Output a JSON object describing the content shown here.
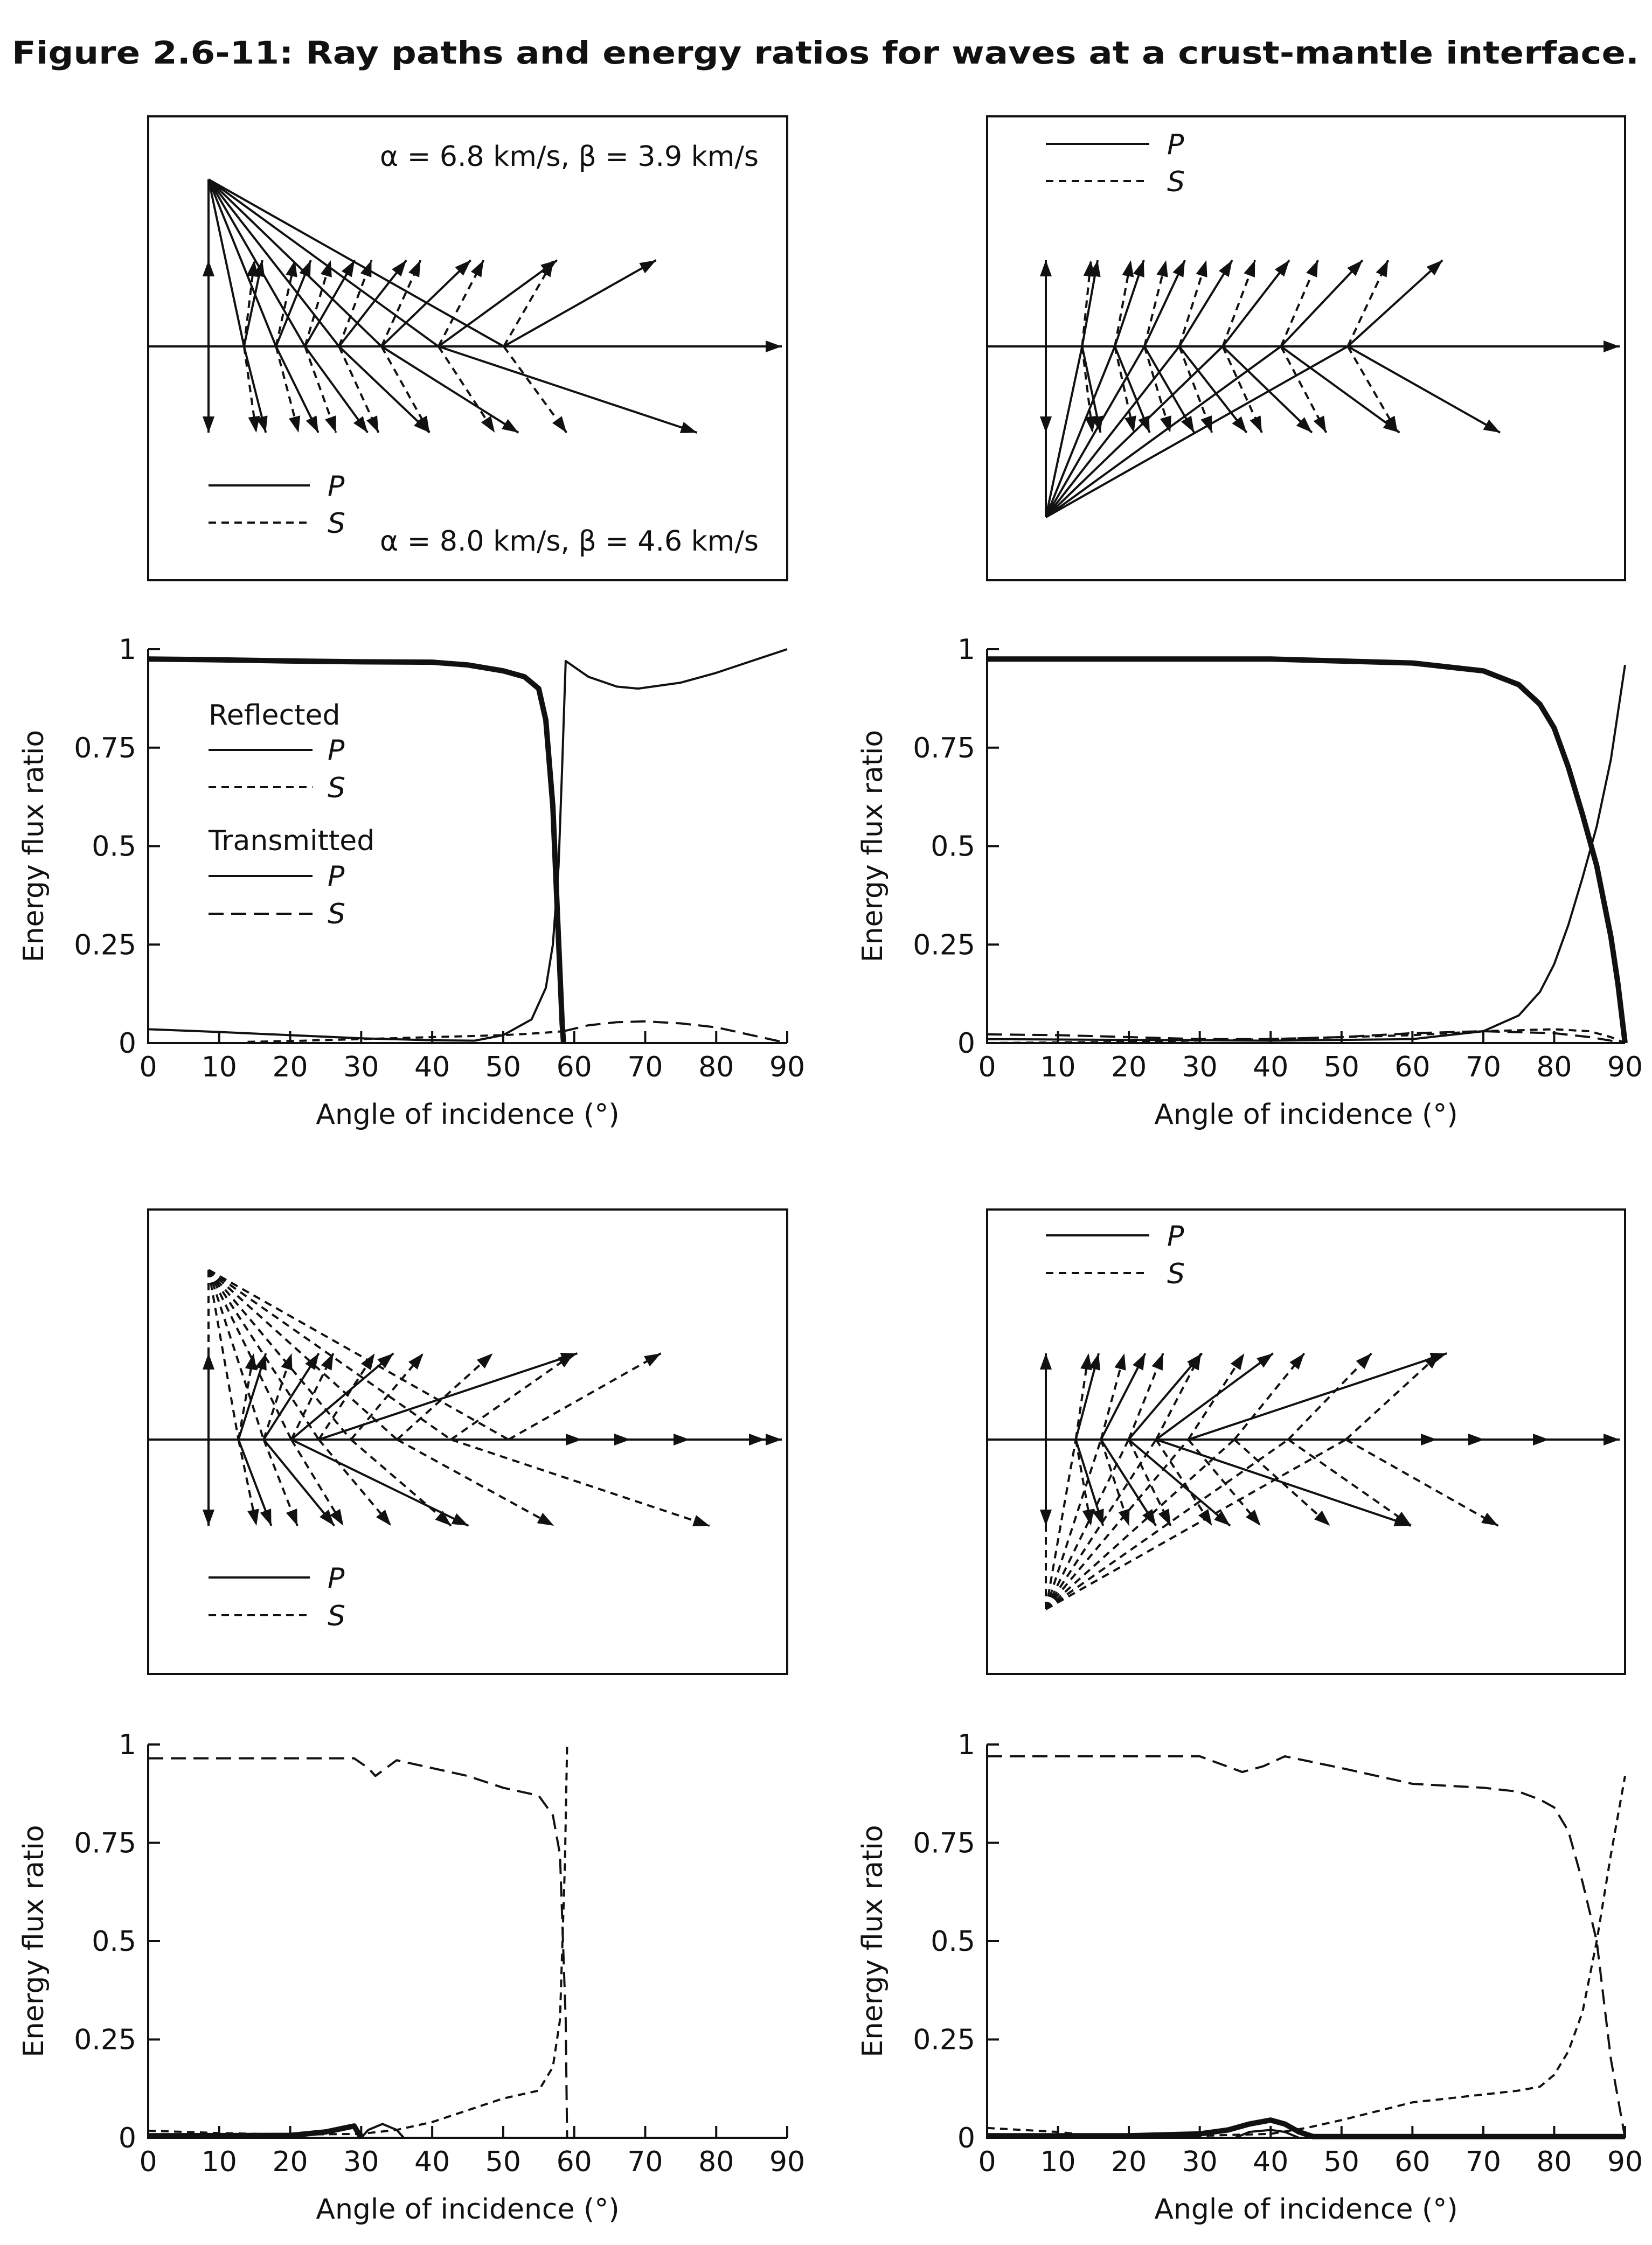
{
  "title": "Figure 2.6-11: Ray paths and energy ratios for waves at a crust-mantle interface.",
  "diagrams": [
    {
      "upper_velocities": "α = 6.8 km/s, β = 3.9 km/s",
      "lower_velocities": "α = 8.0 km/s, β = 4.6 km/s",
      "legend": [
        {
          "label": "P"
        },
        {
          "label": "S"
        }
      ]
    },
    {
      "legend": [
        {
          "label": "P"
        },
        {
          "label": "S"
        }
      ]
    },
    {
      "legend": [
        {
          "label": "P"
        },
        {
          "label": "S"
        }
      ]
    },
    {
      "legend": [
        {
          "label": "P"
        },
        {
          "label": "S"
        }
      ]
    }
  ],
  "chart_legend": {
    "reflected": "Reflected",
    "reflected_p": "P",
    "reflected_s": "S",
    "transmitted": "Transmitted",
    "transmitted_p": "P",
    "transmitted_s": "S"
  },
  "chart_data": [
    {
      "type": "line",
      "title": "",
      "xlabel": "Angle of incidence (°)",
      "ylabel": "Energy flux ratio",
      "xlim": [
        0,
        90
      ],
      "ylim": [
        0,
        1
      ],
      "grid": false,
      "legend": "upper-left",
      "x_ticks": [
        "0",
        "10",
        "20",
        "30",
        "40",
        "50",
        "60",
        "70",
        "80",
        "90"
      ],
      "y_ticks": [
        "0",
        "0.25",
        "0.5",
        "0.75",
        "1"
      ],
      "series": [
        {
          "name": "Reflected P",
          "points": [
            [
              0,
              0.035
            ],
            [
              10,
              0.028
            ],
            [
              20,
              0.02
            ],
            [
              30,
              0.012
            ],
            [
              40,
              0.007
            ],
            [
              46,
              0.006
            ],
            [
              50,
              0.02
            ],
            [
              54,
              0.06
            ],
            [
              56,
              0.14
            ],
            [
              57,
              0.25
            ],
            [
              57.8,
              0.45
            ],
            [
              58.3,
              0.7
            ],
            [
              58.8,
              0.97
            ],
            [
              62,
              0.93
            ],
            [
              66,
              0.905
            ],
            [
              69,
              0.9
            ],
            [
              75,
              0.915
            ],
            [
              80,
              0.94
            ],
            [
              85,
              0.97
            ],
            [
              90,
              1.0
            ]
          ]
        },
        {
          "name": "Reflected S",
          "points": [
            [
              14,
              0.003
            ],
            [
              20,
              0.005
            ],
            [
              30,
              0.01
            ],
            [
              40,
              0.015
            ],
            [
              50,
              0.02
            ],
            [
              55,
              0.025
            ],
            [
              58.5,
              0.03
            ]
          ]
        },
        {
          "name": "Transmitted P",
          "points": [
            [
              0,
              0.975
            ],
            [
              10,
              0.973
            ],
            [
              20,
              0.97
            ],
            [
              30,
              0.968
            ],
            [
              40,
              0.967
            ],
            [
              45,
              0.96
            ],
            [
              50,
              0.945
            ],
            [
              53,
              0.93
            ],
            [
              55,
              0.9
            ],
            [
              56,
              0.82
            ],
            [
              57,
              0.6
            ],
            [
              57.7,
              0.3
            ],
            [
              58.3,
              0.05
            ],
            [
              58.5,
              0
            ]
          ]
        },
        {
          "name": "Transmitted S",
          "points": [
            [
              58.5,
              0.03
            ],
            [
              62,
              0.045
            ],
            [
              66,
              0.053
            ],
            [
              70,
              0.055
            ],
            [
              75,
              0.05
            ],
            [
              80,
              0.04
            ],
            [
              85,
              0.02
            ],
            [
              90,
              0
            ]
          ]
        }
      ]
    },
    {
      "type": "line",
      "title": "",
      "xlabel": "Angle of incidence (°)",
      "ylabel": "Energy flux ratio",
      "xlim": [
        0,
        90
      ],
      "ylim": [
        0,
        1
      ],
      "grid": false,
      "x_ticks": [
        "0",
        "10",
        "20",
        "30",
        "40",
        "50",
        "60",
        "70",
        "80",
        "90"
      ],
      "y_ticks": [
        "0",
        "0.25",
        "0.5",
        "0.75",
        "1"
      ],
      "series": [
        {
          "name": "Reflected P",
          "points": [
            [
              0,
              0.01
            ],
            [
              20,
              0.008
            ],
            [
              40,
              0.006
            ],
            [
              60,
              0.01
            ],
            [
              70,
              0.03
            ],
            [
              75,
              0.07
            ],
            [
              78,
              0.13
            ],
            [
              80,
              0.2
            ],
            [
              82,
              0.3
            ],
            [
              84,
              0.42
            ],
            [
              86,
              0.55
            ],
            [
              88,
              0.72
            ],
            [
              90,
              0.96
            ]
          ]
        },
        {
          "name": "Reflected S",
          "points": [
            [
              0,
              0
            ],
            [
              20,
              0.003
            ],
            [
              40,
              0.01
            ],
            [
              60,
              0.02
            ],
            [
              70,
              0.03
            ],
            [
              80,
              0.035
            ],
            [
              85,
              0.03
            ],
            [
              88,
              0.015
            ],
            [
              90,
              0
            ]
          ]
        },
        {
          "name": "Transmitted P",
          "points": [
            [
              0,
              0.975
            ],
            [
              20,
              0.975
            ],
            [
              40,
              0.975
            ],
            [
              60,
              0.965
            ],
            [
              70,
              0.945
            ],
            [
              75,
              0.91
            ],
            [
              78,
              0.86
            ],
            [
              80,
              0.8
            ],
            [
              82,
              0.7
            ],
            [
              84,
              0.58
            ],
            [
              86,
              0.45
            ],
            [
              88,
              0.27
            ],
            [
              89,
              0.15
            ],
            [
              90,
              0
            ]
          ]
        },
        {
          "name": "Transmitted S",
          "points": [
            [
              0,
              0.022
            ],
            [
              10,
              0.02
            ],
            [
              20,
              0.015
            ],
            [
              30,
              0.01
            ],
            [
              40,
              0.01
            ],
            [
              50,
              0.015
            ],
            [
              60,
              0.025
            ],
            [
              70,
              0.03
            ],
            [
              80,
              0.025
            ],
            [
              85,
              0.015
            ],
            [
              90,
              0
            ]
          ]
        }
      ]
    },
    {
      "type": "line",
      "title": "",
      "xlabel": "Angle of incidence (°)",
      "ylabel": "Energy flux ratio",
      "xlim": [
        0,
        90
      ],
      "ylim": [
        0,
        1
      ],
      "grid": false,
      "x_ticks": [
        "0",
        "10",
        "20",
        "30",
        "40",
        "50",
        "60",
        "70",
        "80",
        "90"
      ],
      "y_ticks": [
        "0",
        "0.25",
        "0.5",
        "0.75",
        "1"
      ],
      "series": [
        {
          "name": "Reflected P",
          "points": [
            [
              30,
              0
            ],
            [
              31,
              0.02
            ],
            [
              33,
              0.035
            ],
            [
              35,
              0.02
            ],
            [
              36,
              0
            ]
          ]
        },
        {
          "name": "Reflected S",
          "points": [
            [
              0,
              0.018
            ],
            [
              10,
              0.012
            ],
            [
              20,
              0.008
            ],
            [
              30,
              0.01
            ],
            [
              35,
              0.02
            ],
            [
              40,
              0.04
            ],
            [
              45,
              0.07
            ],
            [
              50,
              0.1
            ],
            [
              55,
              0.12
            ],
            [
              57,
              0.18
            ],
            [
              58,
              0.3
            ],
            [
              58.7,
              0.7
            ],
            [
              59,
              1.0
            ]
          ]
        },
        {
          "name": "Transmitted P",
          "points": [
            [
              0,
              0.005
            ],
            [
              20,
              0.006
            ],
            [
              25,
              0.015
            ],
            [
              29,
              0.03
            ],
            [
              30,
              0
            ]
          ]
        },
        {
          "name": "Transmitted S",
          "points": [
            [
              0,
              0.965
            ],
            [
              29,
              0.965
            ],
            [
              31,
              0.94
            ],
            [
              32,
              0.92
            ],
            [
              35,
              0.96
            ],
            [
              40,
              0.94
            ],
            [
              45,
              0.92
            ],
            [
              50,
              0.89
            ],
            [
              55,
              0.87
            ],
            [
              57,
              0.82
            ],
            [
              58,
              0.72
            ],
            [
              58.8,
              0.3
            ],
            [
              59,
              0
            ]
          ]
        }
      ]
    },
    {
      "type": "line",
      "title": "",
      "xlabel": "Angle of incidence (°)",
      "ylabel": "Energy flux ratio",
      "xlim": [
        0,
        90
      ],
      "ylim": [
        0,
        1
      ],
      "grid": false,
      "x_ticks": [
        "0",
        "10",
        "20",
        "30",
        "40",
        "50",
        "60",
        "70",
        "80",
        "90"
      ],
      "y_ticks": [
        "0",
        "0.25",
        "0.5",
        "0.75",
        "1"
      ],
      "series": [
        {
          "name": "Reflected P",
          "points": [
            [
              35,
              0
            ],
            [
              37,
              0.015
            ],
            [
              40,
              0.02
            ],
            [
              42,
              0.015
            ],
            [
              44,
              0
            ]
          ]
        },
        {
          "name": "Reflected S",
          "points": [
            [
              0,
              0.025
            ],
            [
              10,
              0.015
            ],
            [
              15,
              0.005
            ],
            [
              30,
              0.005
            ],
            [
              40,
              0.01
            ],
            [
              45,
              0.025
            ],
            [
              50,
              0.045
            ],
            [
              60,
              0.09
            ],
            [
              70,
              0.11
            ],
            [
              75,
              0.12
            ],
            [
              78,
              0.13
            ],
            [
              80,
              0.16
            ],
            [
              82,
              0.22
            ],
            [
              84,
              0.32
            ],
            [
              86,
              0.5
            ],
            [
              88,
              0.72
            ],
            [
              90,
              0.92
            ]
          ]
        },
        {
          "name": "Transmitted P",
          "points": [
            [
              0,
              0.005
            ],
            [
              20,
              0.005
            ],
            [
              30,
              0.01
            ],
            [
              34,
              0.02
            ],
            [
              37,
              0.035
            ],
            [
              40,
              0.045
            ],
            [
              42,
              0.035
            ],
            [
              44,
              0.015
            ],
            [
              46,
              0.003
            ],
            [
              90,
              0.003
            ]
          ]
        },
        {
          "name": "Transmitted S",
          "points": [
            [
              0,
              0.97
            ],
            [
              30,
              0.97
            ],
            [
              33,
              0.95
            ],
            [
              36,
              0.93
            ],
            [
              39,
              0.945
            ],
            [
              42,
              0.97
            ],
            [
              50,
              0.94
            ],
            [
              55,
              0.92
            ],
            [
              60,
              0.9
            ],
            [
              70,
              0.89
            ],
            [
              75,
              0.88
            ],
            [
              78,
              0.86
            ],
            [
              80,
              0.84
            ],
            [
              82,
              0.78
            ],
            [
              84,
              0.65
            ],
            [
              86,
              0.5
            ],
            [
              87,
              0.35
            ],
            [
              88,
              0.2
            ],
            [
              89,
              0.1
            ],
            [
              90,
              0
            ]
          ]
        }
      ]
    }
  ]
}
